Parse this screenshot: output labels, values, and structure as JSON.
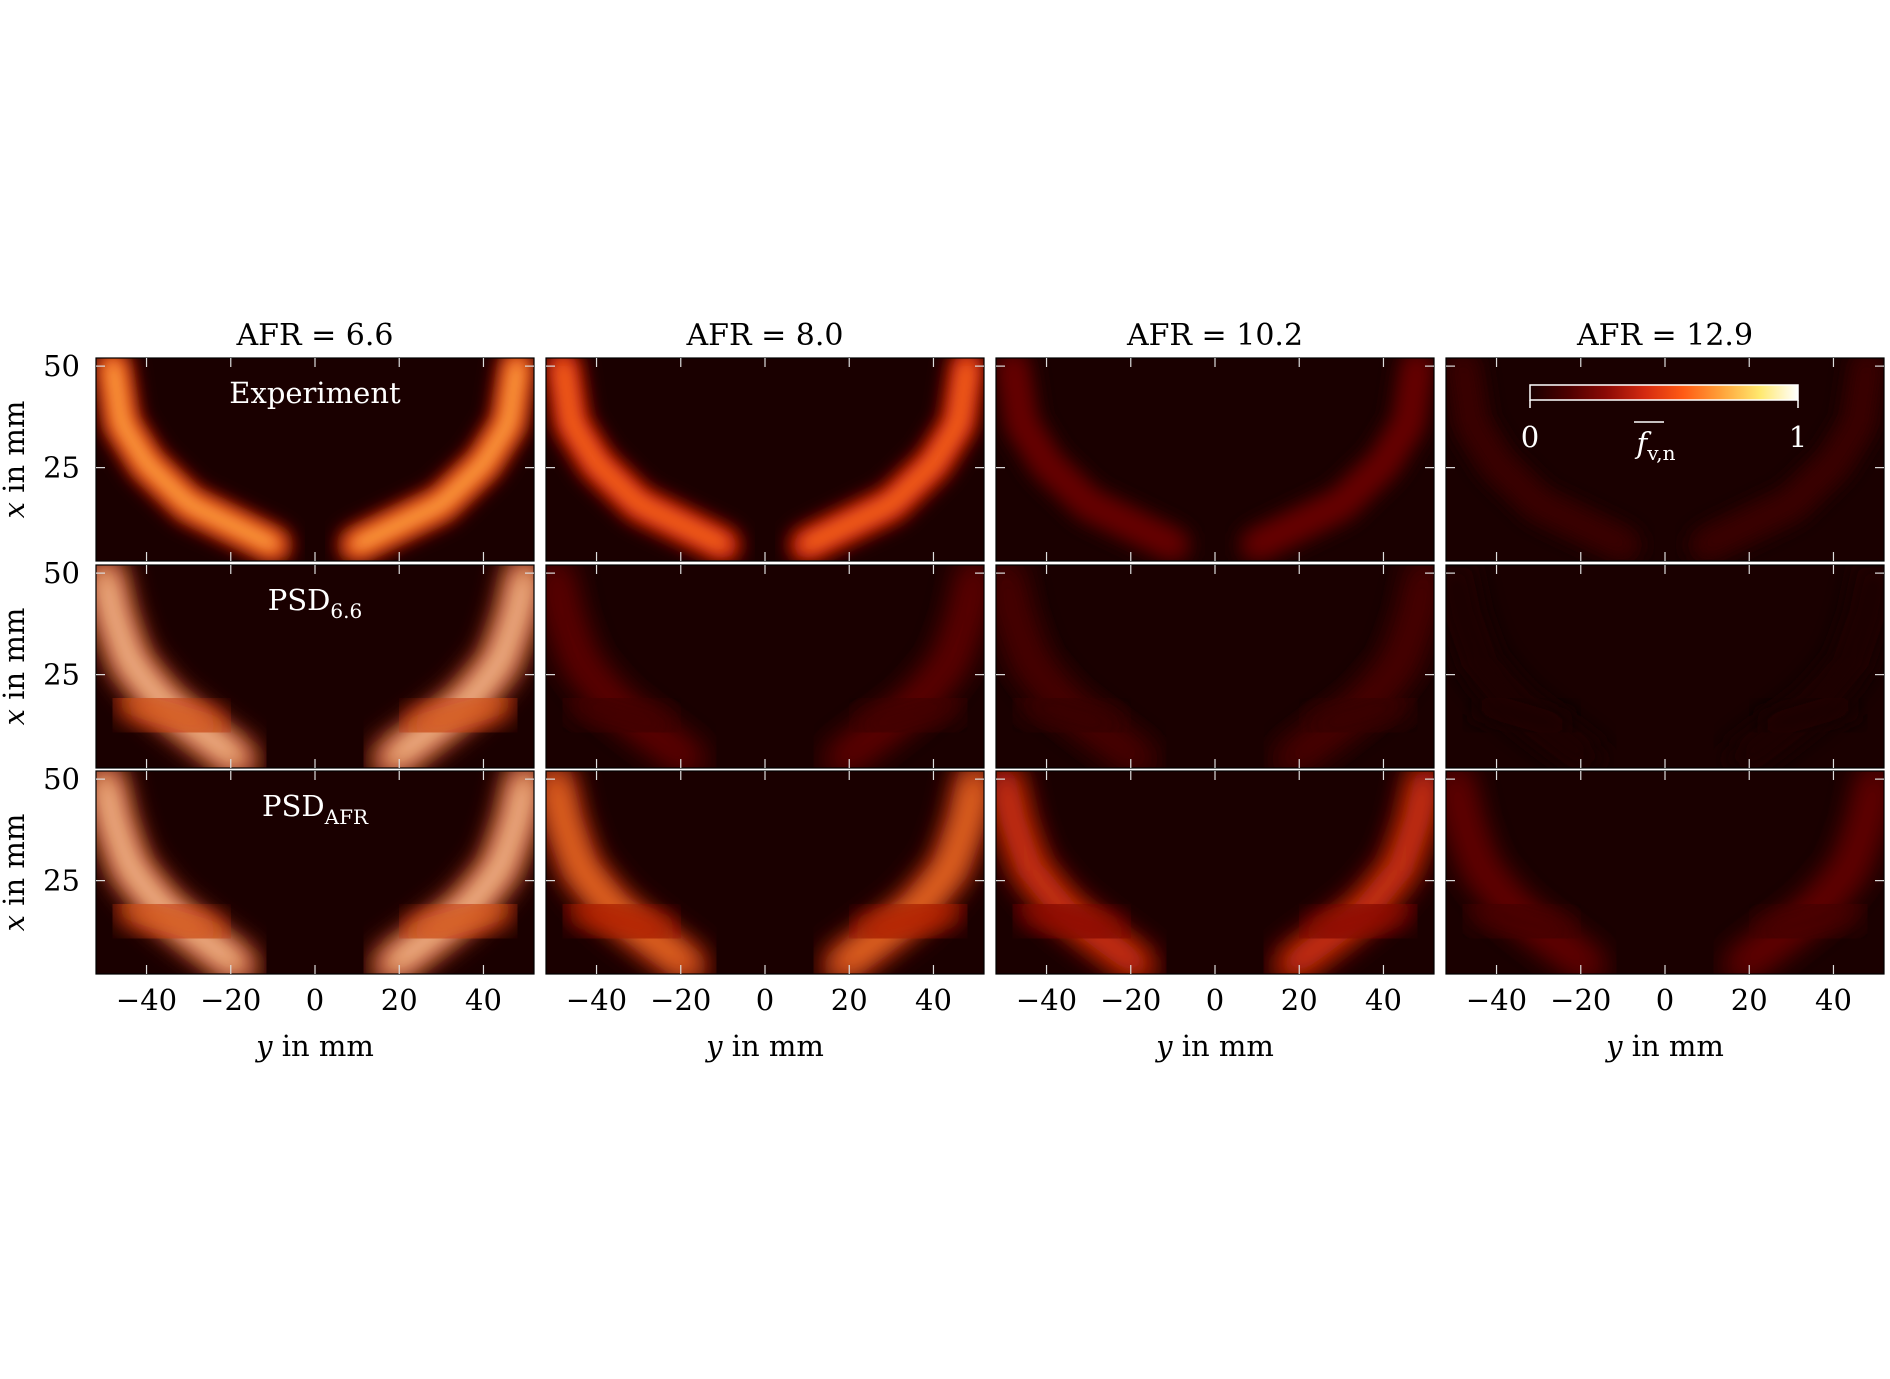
{
  "chart_data": {
    "type": "heatmap",
    "columns": [
      {
        "label": "AFR = 6.6",
        "afr": 6.6
      },
      {
        "label": "AFR = 8.0",
        "afr": 8.0
      },
      {
        "label": "AFR = 10.2",
        "afr": 10.2
      },
      {
        "label": "AFR = 12.9",
        "afr": 12.9
      }
    ],
    "rows": [
      {
        "label": "Experiment",
        "sub": ""
      },
      {
        "label": "PSD",
        "sub": "6.6"
      },
      {
        "label": "PSD",
        "sub": "AFR"
      }
    ],
    "xaxis": {
      "label_italic": "y",
      "label_rest": " in mm",
      "ticks": [
        -40,
        -20,
        0,
        20,
        40
      ],
      "range": [
        -52,
        52
      ]
    },
    "yaxis": {
      "label_italic": "x",
      "label_rest": " in mm",
      "ticks": [
        25,
        50
      ],
      "range": [
        2,
        52
      ]
    },
    "colorbar": {
      "min_label": "0",
      "max_label": "1",
      "symbol": "f",
      "symbol_sub": "v,n",
      "overline": true
    },
    "colormap": [
      "#1a0000",
      "#4d0000",
      "#8c0a05",
      "#d42a10",
      "#ff5a14",
      "#ffa23a",
      "#ffe86e",
      "#ffffff"
    ],
    "intensity": [
      [
        0.75,
        0.62,
        0.22,
        0.1
      ],
      [
        1.0,
        0.22,
        0.16,
        0.0
      ],
      [
        1.0,
        0.72,
        0.55,
        0.24
      ]
    ]
  }
}
